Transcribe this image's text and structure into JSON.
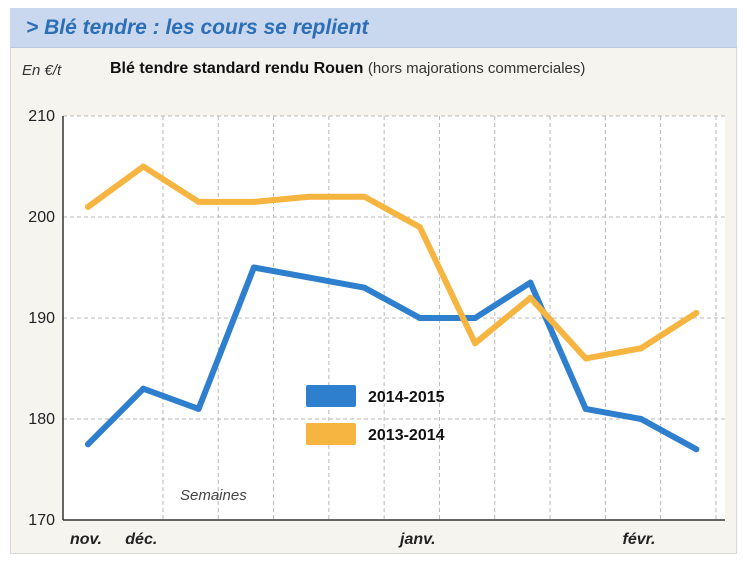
{
  "banner": {
    "title": "> Blé tendre : les cours se replient"
  },
  "header": {
    "unit": "En €/t",
    "title": "Blé tendre standard rendu Rouen",
    "note": "(hors majorations commerciales)"
  },
  "chart_data": {
    "type": "line",
    "title": "Blé tendre standard rendu Rouen (hors majorations commerciales)",
    "ylabel": "En €/t",
    "xlabel": "Semaines",
    "ylim": [
      170,
      210
    ],
    "yticks": [
      170,
      180,
      190,
      200,
      210
    ],
    "xticks": [
      {
        "label": "nov.",
        "week": 0
      },
      {
        "label": "déc.",
        "week": 1
      },
      {
        "label": "janv.",
        "week": 6
      },
      {
        "label": "févr.",
        "week": 10
      }
    ],
    "x": [
      0,
      1,
      2,
      3,
      4,
      5,
      6,
      7,
      8,
      9,
      10,
      11
    ],
    "grid": true,
    "legend_position": "bottom-center",
    "series": [
      {
        "name": "2014-2015",
        "color": "#2f7fcf",
        "values": [
          177.5,
          183,
          181,
          195,
          194,
          193,
          190,
          190,
          193.5,
          181,
          180,
          177
        ]
      },
      {
        "name": "2013-2014",
        "color": "#f6b440",
        "values": [
          201,
          205,
          201.5,
          201.5,
          202,
          202,
          199,
          187.5,
          192,
          186,
          187,
          190.5
        ]
      }
    ]
  }
}
